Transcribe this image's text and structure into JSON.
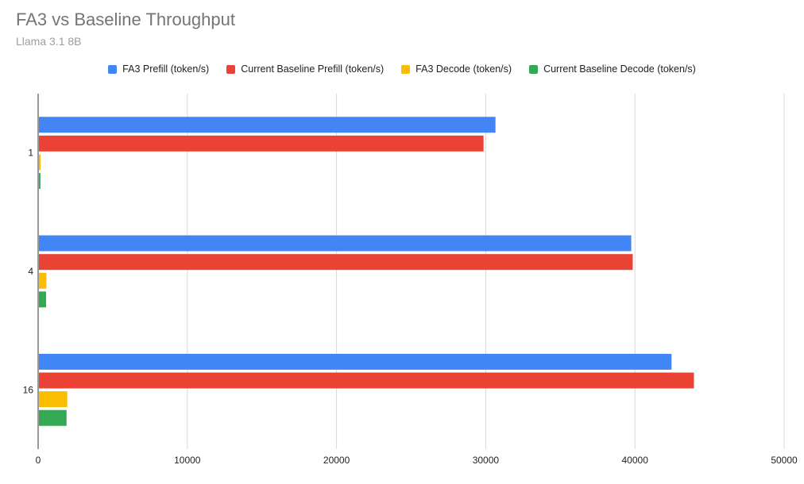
{
  "chart_data": {
    "type": "bar",
    "orientation": "horizontal",
    "title": "FA3 vs Baseline Throughput",
    "subtitle": "Llama 3.1 8B",
    "categories": [
      "1",
      "4",
      "16"
    ],
    "series": [
      {
        "name": "FA3 Prefill (token/s)",
        "color": "#4285F4",
        "values": [
          30600,
          39700,
          42400
        ]
      },
      {
        "name": "Current Baseline Prefill (token/s)",
        "color": "#EA4335",
        "values": [
          29800,
          39800,
          43900
        ]
      },
      {
        "name": "FA3 Decode (token/s)",
        "color": "#FBBC04",
        "values": [
          110,
          500,
          1900
        ]
      },
      {
        "name": "Current Baseline Decode (token/s)",
        "color": "#34A853",
        "values": [
          100,
          480,
          1850
        ]
      }
    ],
    "xlim": [
      0,
      50000
    ],
    "xticks": [
      "0",
      "10000",
      "20000",
      "30000",
      "40000",
      "50000"
    ],
    "grid": true,
    "legend_position": "top"
  }
}
